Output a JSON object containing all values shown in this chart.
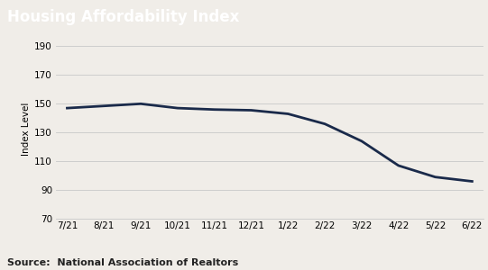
{
  "title": "Housing Affordability Index",
  "ylabel": "Index Level",
  "source": "Source:  National Association of Realtors",
  "x_labels": [
    "7/21",
    "8/21",
    "9/21",
    "10/21",
    "11/21",
    "12/21",
    "1/22",
    "2/22",
    "3/22",
    "4/22",
    "5/22",
    "6/22"
  ],
  "y_values": [
    147,
    148.5,
    150,
    147,
    146,
    145.5,
    143,
    136,
    124,
    107,
    99,
    96
  ],
  "ylim": [
    70,
    195
  ],
  "yticks": [
    70,
    90,
    110,
    130,
    150,
    170,
    190
  ],
  "line_color": "#1a2a4a",
  "line_width": 2.0,
  "title_bg_color": "#535353",
  "title_text_color": "#ffffff",
  "plot_bg_color": "#f0ede8",
  "grid_color": "#c8c8c8",
  "tick_fontsize": 7.5,
  "ylabel_fontsize": 7.5,
  "title_fontsize": 12,
  "source_fontsize": 8
}
